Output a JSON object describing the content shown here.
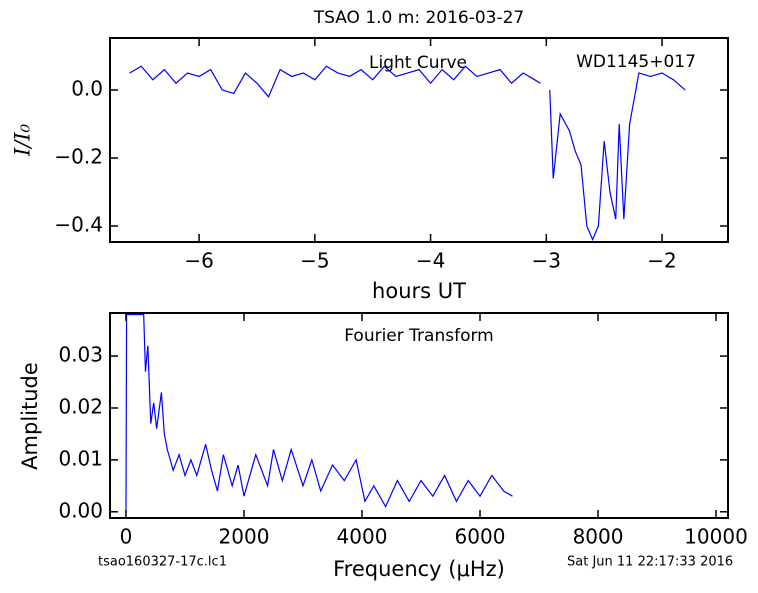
{
  "chart_data": [
    {
      "type": "line",
      "title": "TSAO 1.0 m:  2016-03-27",
      "x_label": "hours UT",
      "y_label": "I/I₀",
      "annotations": [
        "Light Curve",
        "WD1145+017"
      ],
      "xlim": [
        -6.77,
        -1.43
      ],
      "ylim": [
        -0.447,
        0.153
      ],
      "xticks": [
        {
          "value": -6,
          "label": "−6"
        },
        {
          "value": -5,
          "label": "−5"
        },
        {
          "value": -4,
          "label": "−4"
        },
        {
          "value": -3,
          "label": "−3"
        },
        {
          "value": -2,
          "label": "−2"
        }
      ],
      "yticks": [
        {
          "value": 0,
          "label": "0.0"
        },
        {
          "value": -0.2,
          "label": "−0.2"
        },
        {
          "value": -0.4,
          "label": "−0.4"
        }
      ],
      "grid": false,
      "x": [
        -6.6,
        -6.5,
        -6.4,
        -6.3,
        -6.2,
        -6.1,
        -6.0,
        -5.9,
        -5.8,
        -5.7,
        -5.6,
        -5.5,
        -5.4,
        -5.3,
        -5.2,
        -5.1,
        -5.0,
        -4.9,
        -4.8,
        -4.7,
        -4.6,
        -4.5,
        -4.4,
        -4.3,
        -4.2,
        -4.1,
        -4.0,
        -3.9,
        -3.8,
        -3.7,
        -3.6,
        -3.5,
        -3.4,
        -3.3,
        -3.2,
        -3.1,
        -3.05,
        -3.0,
        -2.97,
        -2.94,
        -2.88,
        -2.8,
        -2.75,
        -2.7,
        -2.65,
        -2.6,
        -2.55,
        -2.5,
        -2.45,
        -2.4,
        -2.37,
        -2.33,
        -2.28,
        -2.2,
        -2.1,
        -2.0,
        -1.9,
        -1.8
      ],
      "series": [
        {
          "name": "light curve",
          "color": "#0000ff",
          "values": [
            0.05,
            0.07,
            0.03,
            0.06,
            0.02,
            0.05,
            0.04,
            0.06,
            0.0,
            -0.01,
            0.05,
            0.02,
            -0.02,
            0.06,
            0.04,
            0.05,
            0.03,
            0.07,
            0.05,
            0.04,
            0.06,
            0.03,
            0.07,
            0.04,
            0.05,
            0.06,
            0.02,
            0.06,
            0.03,
            0.07,
            0.04,
            0.05,
            0.06,
            0.02,
            0.05,
            0.03,
            0.02,
            null,
            0.0,
            -0.26,
            -0.07,
            -0.12,
            -0.18,
            -0.22,
            -0.4,
            -0.44,
            -0.4,
            -0.15,
            -0.3,
            -0.38,
            -0.1,
            -0.38,
            -0.1,
            0.05,
            0.04,
            0.05,
            0.03,
            0.0
          ]
        }
      ]
    },
    {
      "type": "line",
      "title": "Fourier Transform",
      "x_label": "Frequency (μHz)",
      "y_label": "Amplitude",
      "footer": [
        "tsao160327-17c.lc1",
        "Sat Jun 11 22:17:33 2016"
      ],
      "xlim": [
        -271,
        10203
      ],
      "ylim": [
        -0.0012,
        0.0383
      ],
      "xticks": [
        0,
        2000,
        4000,
        6000,
        8000,
        10000
      ],
      "yticks": [
        {
          "value": 0,
          "label": "0.00"
        },
        {
          "value": 0.01,
          "label": "0.01"
        },
        {
          "value": 0.02,
          "label": "0.02"
        },
        {
          "value": 0.03,
          "label": "0.03"
        }
      ],
      "grid": false,
      "x": [
        0,
        10,
        300,
        330,
        370,
        420,
        470,
        520,
        600,
        650,
        700,
        800,
        900,
        1000,
        1100,
        1200,
        1350,
        1450,
        1550,
        1650,
        1800,
        1900,
        2000,
        2200,
        2400,
        2500,
        2650,
        2800,
        3000,
        3150,
        3300,
        3500,
        3700,
        3900,
        4050,
        4200,
        4400,
        4600,
        4800,
        5000,
        5200,
        5400,
        5600,
        5800,
        6000,
        6200,
        6400,
        6550
      ],
      "series": [
        {
          "name": "amplitude",
          "color": "#0000ff",
          "values": [
            0.0,
            0.038,
            0.038,
            0.027,
            0.032,
            0.017,
            0.021,
            0.016,
            0.023,
            0.015,
            0.012,
            0.008,
            0.011,
            0.007,
            0.01,
            0.007,
            0.013,
            0.008,
            0.004,
            0.011,
            0.005,
            0.009,
            0.003,
            0.011,
            0.005,
            0.012,
            0.006,
            0.012,
            0.005,
            0.01,
            0.004,
            0.009,
            0.006,
            0.01,
            0.002,
            0.005,
            0.001,
            0.006,
            0.002,
            0.006,
            0.003,
            0.007,
            0.002,
            0.006,
            0.003,
            0.007,
            0.004,
            0.003
          ]
        }
      ]
    }
  ]
}
